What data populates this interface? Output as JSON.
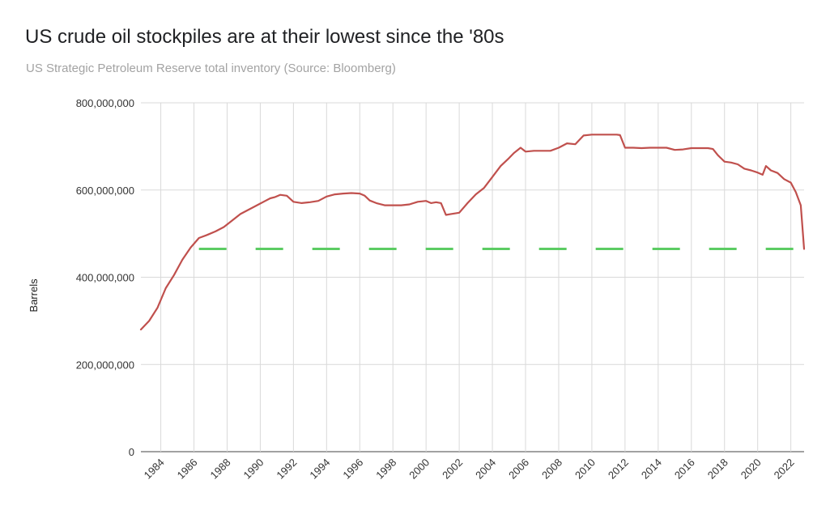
{
  "chart_data": {
    "type": "line",
    "title": "US crude oil stockpiles are at their lowest since the '80s",
    "subtitle": "US Strategic Petroleum Reserve total inventory (Source: Bloomberg)",
    "ylabel": "Barrels",
    "xlabel": "",
    "ylim": [
      0,
      800000000
    ],
    "xlim": [
      1982.8,
      2022.8
    ],
    "y_ticks": [
      "0",
      "200,000,000",
      "400,000,000",
      "600,000,000",
      "800,000,000"
    ],
    "y_tick_values": [
      0,
      200000000,
      400000000,
      600000000,
      800000000
    ],
    "x_ticks": [
      "1984",
      "1986",
      "1988",
      "1990",
      "1992",
      "1994",
      "1996",
      "1998",
      "2000",
      "2002",
      "2004",
      "2006",
      "2008",
      "2010",
      "2012",
      "2014",
      "2016",
      "2018",
      "2020",
      "2022"
    ],
    "grid": true,
    "colors": {
      "line": "#c0504d",
      "reference": "#5ccc63",
      "grid": "#d9d9d9"
    },
    "series": [
      {
        "x": [
          1982.8,
          1983.3,
          1983.8,
          1984.3,
          1984.8,
          1985.3,
          1985.8,
          1986.3,
          1986.8,
          1987.3,
          1987.8,
          1988.3,
          1988.8,
          1989.3,
          1989.8,
          1990.3,
          1990.6,
          1990.9,
          1991.2,
          1991.6,
          1992.0,
          1992.5,
          1993.0,
          1993.5,
          1994.0,
          1994.5,
          1995.0,
          1995.5,
          1996.0,
          1996.3,
          1996.6,
          1997.0,
          1997.5,
          1998.0,
          1998.5,
          1999.0,
          1999.5,
          2000.0,
          2000.3,
          2000.6,
          2000.9,
          2001.2,
          2001.5,
          2002.0,
          2002.5,
          2003.0,
          2003.5,
          2004.0,
          2004.5,
          2005.0,
          2005.3,
          2005.7,
          2006.0,
          2006.5,
          2007.0,
          2007.5,
          2008.0,
          2008.5,
          2009.0,
          2009.5,
          2010.0,
          2010.5,
          2011.0,
          2011.5,
          2011.7,
          2012.0,
          2012.5,
          2013.0,
          2013.5,
          2014.0,
          2014.5,
          2015.0,
          2015.5,
          2016.0,
          2016.5,
          2017.0,
          2017.3,
          2017.6,
          2018.0,
          2018.4,
          2018.8,
          2019.2,
          2019.6,
          2020.0,
          2020.3,
          2020.5,
          2020.8,
          2021.2,
          2021.6,
          2022.0,
          2022.3,
          2022.6,
          2022.8
        ],
        "y": [
          280000000,
          300000000,
          330000000,
          375000000,
          405000000,
          440000000,
          468000000,
          490000000,
          497000000,
          505000000,
          515000000,
          530000000,
          545000000,
          555000000,
          565000000,
          575000000,
          581000000,
          584000000,
          589000000,
          587000000,
          573000000,
          570000000,
          572000000,
          575000000,
          585000000,
          590000000,
          592000000,
          593000000,
          592000000,
          587000000,
          576000000,
          570000000,
          565000000,
          565000000,
          565000000,
          567000000,
          573000000,
          575000000,
          570000000,
          572000000,
          570000000,
          543000000,
          545000000,
          548000000,
          570000000,
          590000000,
          605000000,
          630000000,
          655000000,
          673000000,
          685000000,
          697000000,
          688000000,
          690000000,
          690000000,
          690000000,
          697000000,
          707000000,
          705000000,
          725000000,
          727000000,
          727000000,
          727000000,
          727000000,
          726000000,
          697000000,
          697000000,
          696000000,
          697000000,
          697000000,
          697000000,
          692000000,
          693000000,
          696000000,
          696000000,
          696000000,
          694000000,
          680000000,
          665000000,
          663000000,
          659000000,
          649000000,
          645000000,
          640000000,
          635000000,
          655000000,
          645000000,
          639000000,
          625000000,
          617000000,
          595000000,
          565000000,
          465000000
        ]
      }
    ],
    "reference_line": {
      "y": 465000000,
      "x_start": 1986.3,
      "x_end": 2022.6,
      "style": "dashed"
    }
  }
}
